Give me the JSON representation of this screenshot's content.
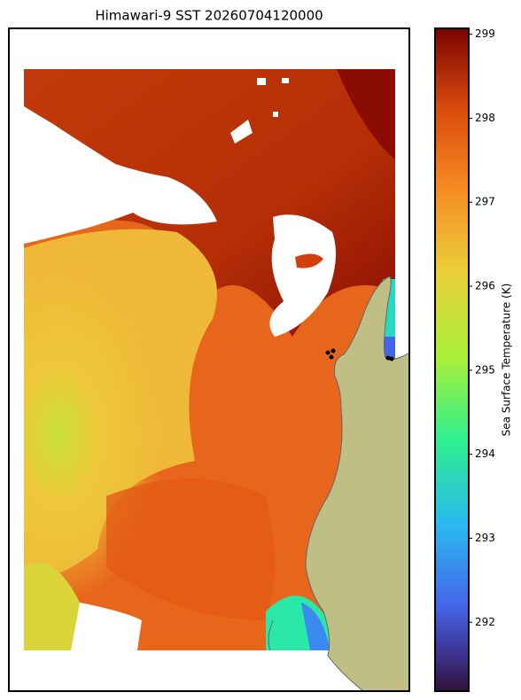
{
  "title": "Himawari-9 SST 20260704120000",
  "colorbar": {
    "label": "Sea Surface Temperature (K)",
    "lim": [
      291.18,
      299.07
    ],
    "ticks": [
      292,
      293,
      294,
      295,
      296,
      297,
      298,
      299
    ]
  }
}
